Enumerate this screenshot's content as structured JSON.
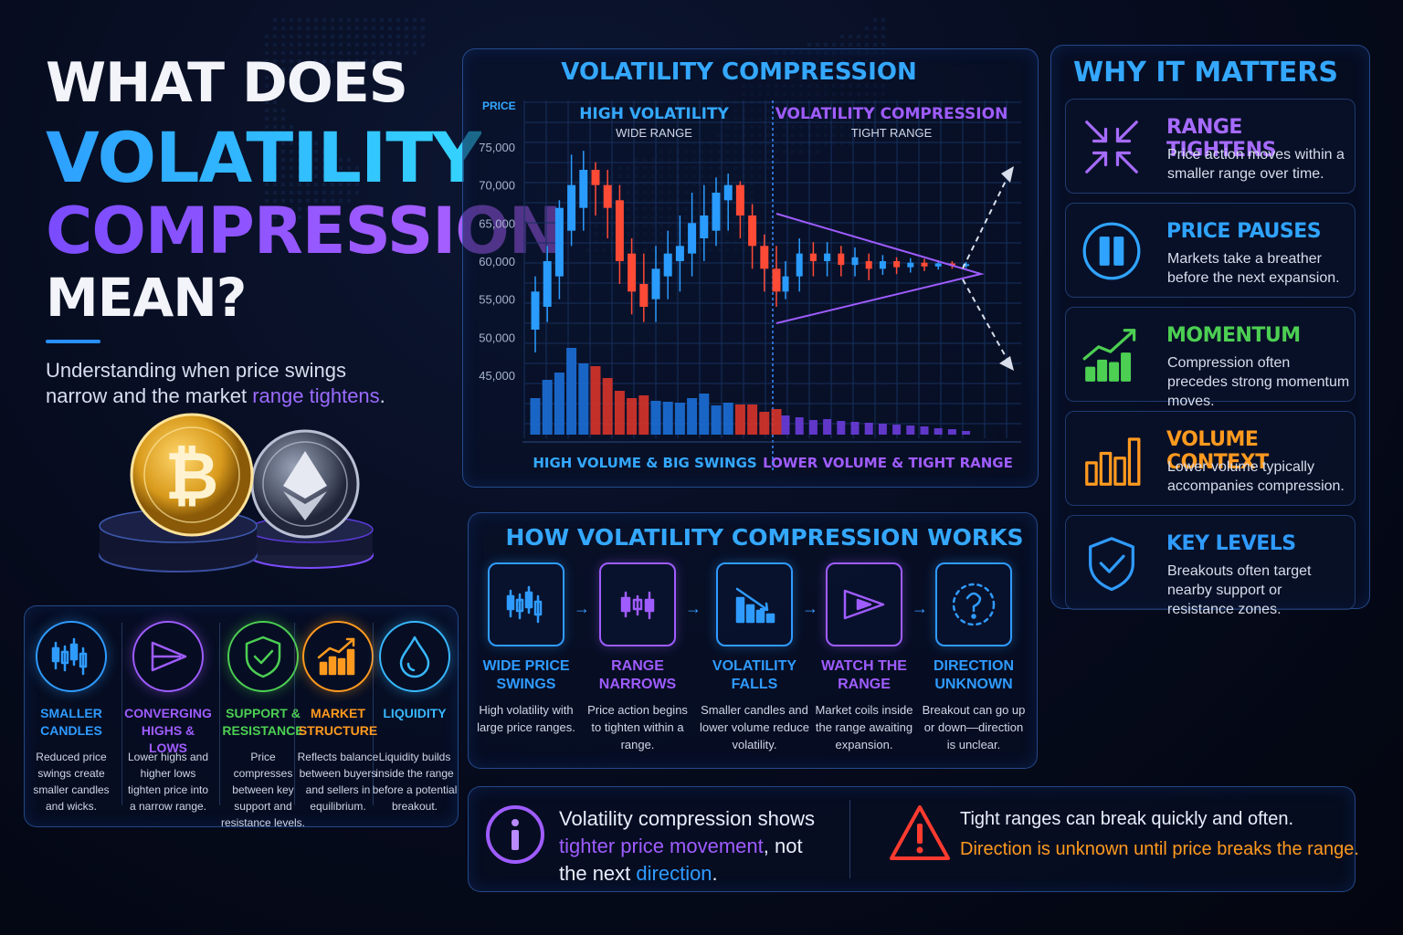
{
  "hero": {
    "line1": "WHAT DOES",
    "line2": "VOLATILITY",
    "line3": "COMPRESSION",
    "line4": "MEAN?",
    "subtitle_pre": "Understanding when price swings narrow and the market ",
    "subtitle_hl": "range tightens",
    "subtitle_post": "."
  },
  "concepts": [
    {
      "name": "SMALLER CANDLES",
      "desc": "Reduced price swings create smaller candles and wicks.",
      "icon": "candles-icon",
      "color": "#2f9bff"
    },
    {
      "name": "CONVERGING HIGHS & LOWS",
      "desc": "Lower highs and higher lows tighten price into a narrow range.",
      "icon": "triangle-play-icon",
      "color": "#9f5cff"
    },
    {
      "name": "SUPPORT & RESISTANCE",
      "desc": "Price compresses between key support and resistance levels.",
      "icon": "shield-check-icon",
      "color": "#4ccf52"
    },
    {
      "name": "MARKET STRUCTURE",
      "desc": "Reflects balance between buyers and sellers in equilibrium.",
      "icon": "trend-chart-icon",
      "color": "#ff9a1f"
    },
    {
      "name": "LIQUIDITY",
      "desc": "Liquidity builds inside the range before a potential breakout.",
      "icon": "drop-icon",
      "color": "#38b8ff"
    }
  ],
  "chart_panel": {
    "title": "VOLATILITY COMPRESSION",
    "price_label": "PRICE",
    "left_heading": "HIGH VOLATILITY",
    "left_sub": "WIDE RANGE",
    "right_heading": "VOLATILITY COMPRESSION",
    "right_sub": "TIGHT RANGE",
    "left_footer": "HIGH VOLUME & BIG SWINGS",
    "right_footer": "LOWER VOLUME & TIGHT RANGE"
  },
  "chart_data": {
    "type": "candlestick",
    "ylabel": "PRICE",
    "yticks": [
      "75,000",
      "70,000",
      "65,000",
      "60,000",
      "55,000",
      "50,000",
      "45,000"
    ],
    "ylim": [
      42000,
      78000
    ],
    "grid": true,
    "candles_open_close_high_low": [
      [
        51000,
        56000,
        58000,
        48000
      ],
      [
        54000,
        60000,
        62000,
        52000
      ],
      [
        58000,
        67000,
        68000,
        55000
      ],
      [
        64000,
        70000,
        74000,
        62000
      ],
      [
        67000,
        72000,
        74500,
        64000
      ],
      [
        72000,
        70000,
        73000,
        66000
      ],
      [
        70000,
        67000,
        72000,
        63000
      ],
      [
        68000,
        60000,
        70000,
        57000
      ],
      [
        61000,
        56000,
        63000,
        53000
      ],
      [
        57000,
        54000,
        61000,
        52000
      ],
      [
        55000,
        59000,
        62000,
        52000
      ],
      [
        58000,
        61000,
        64000,
        55000
      ],
      [
        60000,
        62000,
        66000,
        56000
      ],
      [
        61000,
        65000,
        69000,
        58000
      ],
      [
        63000,
        66000,
        70000,
        60000
      ],
      [
        64000,
        69000,
        71000,
        62000
      ],
      [
        68000,
        70000,
        71500,
        64000
      ],
      [
        70000,
        66000,
        70500,
        63000
      ],
      [
        66000,
        62000,
        67500,
        59000
      ],
      [
        62000,
        59000,
        63500,
        56000
      ],
      [
        59000,
        56000,
        62000,
        54000
      ],
      [
        56000,
        58000,
        60000,
        55000
      ],
      [
        58000,
        61000,
        63000,
        56000
      ],
      [
        61000,
        60000,
        62500,
        58000
      ],
      [
        60000,
        61000,
        62500,
        58000
      ],
      [
        61000,
        59500,
        62000,
        58000
      ],
      [
        59500,
        60500,
        61800,
        58000
      ],
      [
        60000,
        59000,
        61000,
        57500
      ],
      [
        59000,
        60000,
        60800,
        58200
      ],
      [
        60000,
        59200,
        60500,
        58300
      ],
      [
        59200,
        59800,
        60400,
        58500
      ],
      [
        59800,
        59300,
        60300,
        58700
      ],
      [
        59300,
        59700,
        60100,
        58900
      ],
      [
        59700,
        59400,
        60000,
        59000
      ],
      [
        59400,
        59600,
        59900,
        59100
      ]
    ],
    "volume": [
      40,
      60,
      68,
      95,
      78,
      75,
      62,
      48,
      40,
      43,
      37,
      36,
      35,
      40,
      45,
      32,
      35,
      33,
      33,
      25,
      28,
      21,
      19,
      16,
      17,
      15,
      14,
      13,
      12,
      11,
      10,
      9,
      7,
      6,
      4
    ],
    "breakout": "up or down"
  },
  "how": {
    "title": "HOW VOLATILITY COMPRESSION WORKS",
    "steps": [
      {
        "name": "WIDE PRICE SWINGS",
        "desc": "High volatility with large price ranges.",
        "icon": "candles-icon",
        "color": "#2f9bff"
      },
      {
        "name": "RANGE NARROWS",
        "desc": "Price action begins to tighten within a range.",
        "icon": "small-candles-icon",
        "color": "#9f5cff"
      },
      {
        "name": "VOLATILITY FALLS",
        "desc": "Smaller candles and lower volume reduce volatility.",
        "icon": "falling-bars-icon",
        "color": "#2f9bff"
      },
      {
        "name": "WATCH THE RANGE",
        "desc": "Market coils inside the range awaiting expansion.",
        "icon": "coil-icon",
        "color": "#9f5cff"
      },
      {
        "name": "DIRECTION UNKNOWN",
        "desc": "Breakout can go up or down—direction is unclear.",
        "icon": "question-icon",
        "color": "#2f9bff"
      }
    ]
  },
  "why": {
    "title": "WHY IT MATTERS",
    "items": [
      {
        "title": "RANGE TIGHTENS",
        "desc": "Price action moves within a smaller range over time.",
        "icon": "compress-arrows-icon",
        "color": "#a66bff"
      },
      {
        "title": "PRICE PAUSES",
        "desc": "Markets take a breather before the next expansion.",
        "icon": "pause-icon",
        "color": "#2fa4ff"
      },
      {
        "title": "MOMENTUM",
        "desc": "Compression often precedes strong momentum moves.",
        "icon": "momentum-icon",
        "color": "#4ccf52"
      },
      {
        "title": "VOLUME CONTEXT",
        "desc": "Lower volume typically accompanies compression.",
        "icon": "volume-bars-icon",
        "color": "#ff9a1f"
      },
      {
        "title": "KEY LEVELS",
        "desc": "Breakouts often target nearby support or resistance zones.",
        "icon": "shield-check-icon",
        "color": "#2f9bff"
      }
    ]
  },
  "footer": {
    "info_pre": "Volatility compression shows ",
    "info_hl1": "tighter price movement",
    "info_mid": ", not the next ",
    "info_hl2": "direction",
    "info_post": ".",
    "warn_line1": "Tight ranges can break quickly and often.",
    "warn_line2": "Direction is unknown until price breaks the range."
  }
}
